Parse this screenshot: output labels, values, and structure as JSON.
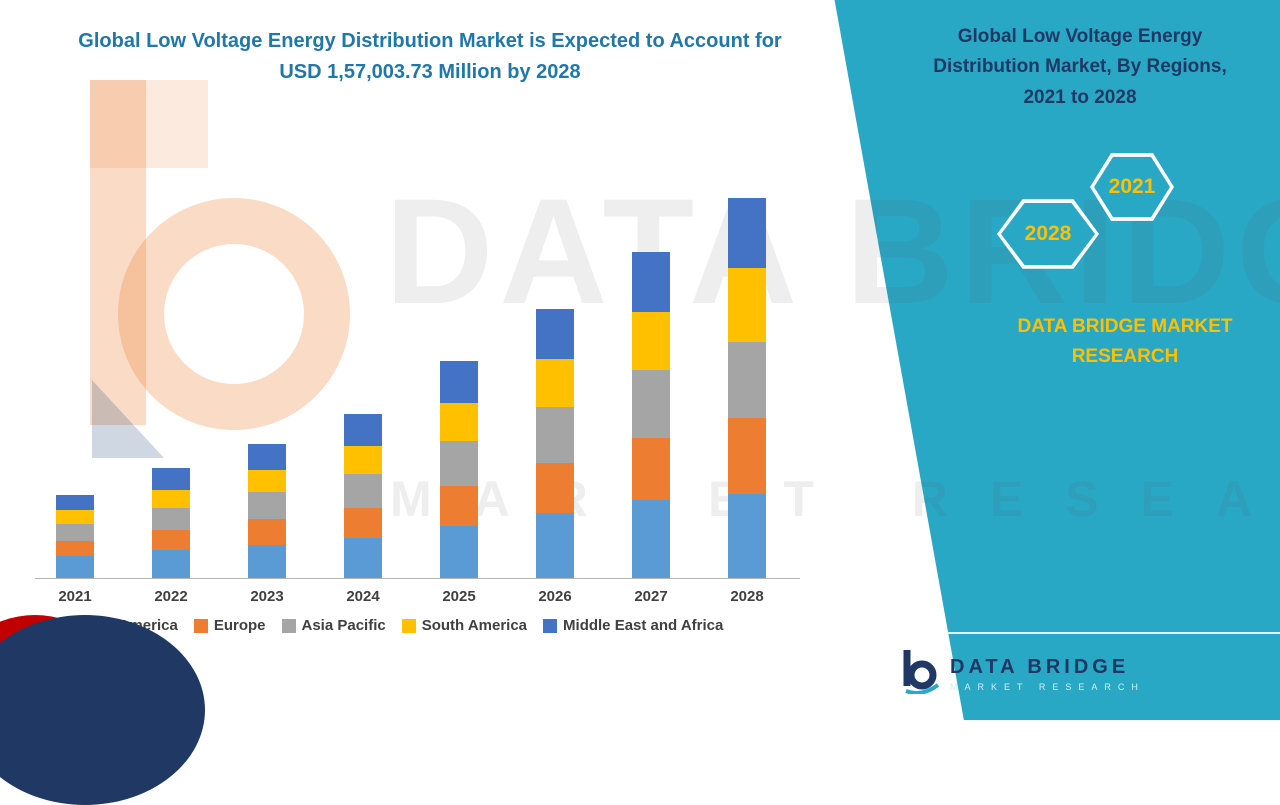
{
  "left_title": {
    "line1": "Global Low Voltage Energy Distribution Market is Expected to Account for",
    "line2": "USD 1,57,003.73 Million by 2028"
  },
  "panel": {
    "bg_color": "#29A8C6",
    "title_color": "#1F3864",
    "accent_color": "#FFC000",
    "title_lines": [
      "Global Low Voltage Energy",
      "Distribution Market,  By Regions,",
      "2021 to 2028"
    ],
    "hexagon_front": "2028",
    "hexagon_back": "2021",
    "brand_line1": "DATA BRIDGE MARKET",
    "brand_line2": "RESEARCH"
  },
  "watermark": {
    "line1": "DATA BRIDGE",
    "line2": "MARKET RESEARCH"
  },
  "logo": {
    "name": "DATA BRIDGE",
    "sub": "MARKET RESEARCH"
  },
  "chart_data": {
    "type": "bar",
    "stacked": true,
    "title": "Global Low Voltage Energy Distribution Market, By Regions, 2021 to 2028",
    "xlabel": "",
    "ylabel": "",
    "y_axis_visible": false,
    "legend_position": "bottom",
    "units": "relative market size (no y-axis scale shown in figure)",
    "categories": [
      "2021",
      "2022",
      "2023",
      "2024",
      "2025",
      "2026",
      "2027",
      "2028"
    ],
    "series": [
      {
        "name": "North America",
        "color": "#5B9BD5",
        "values": [
          22,
          28,
          33,
          40,
          52,
          65,
          78,
          84
        ]
      },
      {
        "name": "Europe",
        "color": "#ED7D31",
        "values": [
          15,
          20,
          26,
          30,
          40,
          50,
          62,
          76
        ]
      },
      {
        "name": "Asia Pacific",
        "color": "#A5A5A5",
        "values": [
          17,
          22,
          27,
          34,
          45,
          56,
          68,
          76
        ]
      },
      {
        "name": "South America",
        "color": "#FFC000",
        "values": [
          14,
          18,
          22,
          28,
          38,
          48,
          58,
          74
        ]
      },
      {
        "name": "Middle East and Africa",
        "color": "#4472C4",
        "values": [
          15,
          22,
          26,
          32,
          42,
          50,
          60,
          70
        ]
      }
    ]
  }
}
